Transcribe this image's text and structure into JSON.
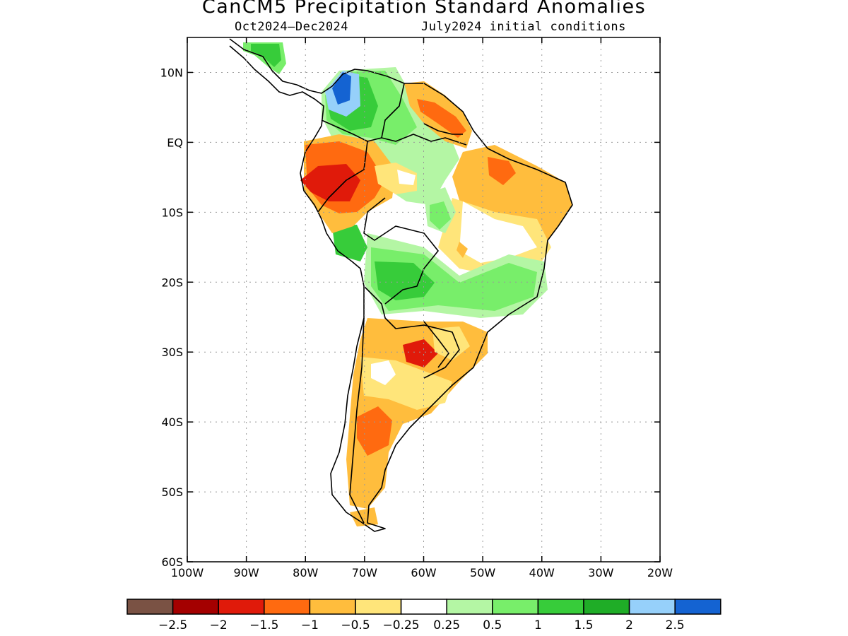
{
  "title": "CanCM5 Precipitation Standard Anomalies",
  "subtitle_period": "Oct2024–Dec2024",
  "subtitle_init": "July2024 initial conditions",
  "lat_ticks": [
    "10N",
    "EQ",
    "10S",
    "20S",
    "30S",
    "40S",
    "50S",
    "60S"
  ],
  "lon_ticks": [
    "100W",
    "90W",
    "80W",
    "70W",
    "60W",
    "50W",
    "40W",
    "30W",
    "20W"
  ],
  "legend": {
    "colors": [
      "#7a5244",
      "#a40000",
      "#e01a0a",
      "#ff6a10",
      "#ffbd3d",
      "#ffe57a",
      "#ffffff",
      "#b4f6a4",
      "#78ee6a",
      "#37cc3a",
      "#1fad27",
      "#96d0fa",
      "#1463d2"
    ],
    "labels": [
      "−2.5",
      "−2",
      "−1.5",
      "−1",
      "−0.5",
      "−0.25",
      "0.25",
      "0.5",
      "1",
      "1.5",
      "2",
      "2.5"
    ]
  },
  "map_domain": {
    "lon_range": [
      "100W",
      "20W"
    ],
    "lat_range": [
      "60S",
      "15N"
    ]
  }
}
